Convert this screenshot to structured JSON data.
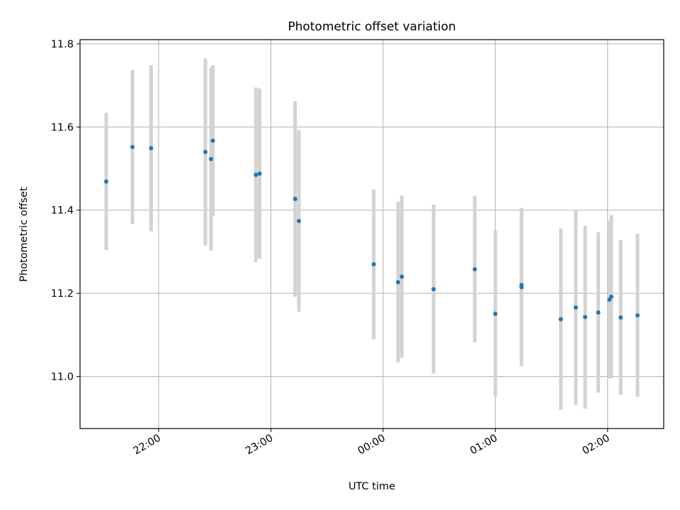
{
  "chart_data": {
    "type": "scatter",
    "title": "Photometric offset variation",
    "xlabel": "UTC time",
    "ylabel": "Photometric offset",
    "x_axis": {
      "kind": "time",
      "range": [
        "21:18",
        "02:30"
      ],
      "ticks": [
        "22:00",
        "23:00",
        "00:00",
        "01:00",
        "02:00"
      ]
    },
    "y_axis": {
      "range": [
        10.875,
        11.81
      ],
      "ticks": [
        "11.0",
        "11.2",
        "11.4",
        "11.6",
        "11.8"
      ]
    },
    "grid": true,
    "colors": {
      "point": "#1f77b4",
      "errorbar": "#d3d3d3",
      "grid": "#b0b0b0"
    },
    "series": [
      {
        "points": [
          {
            "x": "21:32",
            "y": 11.469,
            "err": 0.165
          },
          {
            "x": "21:46",
            "y": 11.552,
            "err": 0.185
          },
          {
            "x": "21:56",
            "y": 11.549,
            "err": 0.2
          },
          {
            "x": "22:25",
            "y": 11.54,
            "err": 0.225
          },
          {
            "x": "22:28",
            "y": 11.523,
            "err": 0.22
          },
          {
            "x": "22:29",
            "y": 11.567,
            "err": 0.182
          },
          {
            "x": "22:52",
            "y": 11.485,
            "err": 0.21
          },
          {
            "x": "22:54",
            "y": 11.488,
            "err": 0.205
          },
          {
            "x": "23:13",
            "y": 11.427,
            "err": 0.235
          },
          {
            "x": "23:15",
            "y": 11.374,
            "err": 0.218
          },
          {
            "x": "23:55",
            "y": 11.27,
            "err": 0.18
          },
          {
            "x": "00:08",
            "y": 11.227,
            "err": 0.193
          },
          {
            "x": "00:10",
            "y": 11.24,
            "err": 0.195
          },
          {
            "x": "00:27",
            "y": 11.21,
            "err": 0.203
          },
          {
            "x": "00:49",
            "y": 11.258,
            "err": 0.176
          },
          {
            "x": "01:00",
            "y": 11.151,
            "err": 0.2
          },
          {
            "x": "01:14",
            "y": 11.215,
            "err": 0.19
          },
          {
            "x": "01:14",
            "y": 11.22,
            "err": 0.185
          },
          {
            "x": "01:35",
            "y": 11.138,
            "err": 0.218
          },
          {
            "x": "01:43",
            "y": 11.166,
            "err": 0.234
          },
          {
            "x": "01:48",
            "y": 11.143,
            "err": 0.22
          },
          {
            "x": "01:55",
            "y": 11.154,
            "err": 0.193
          },
          {
            "x": "02:01",
            "y": 11.185,
            "err": 0.19
          },
          {
            "x": "02:02",
            "y": 11.192,
            "err": 0.196
          },
          {
            "x": "02:07",
            "y": 11.142,
            "err": 0.186
          },
          {
            "x": "02:16",
            "y": 11.147,
            "err": 0.196
          }
        ]
      }
    ]
  }
}
